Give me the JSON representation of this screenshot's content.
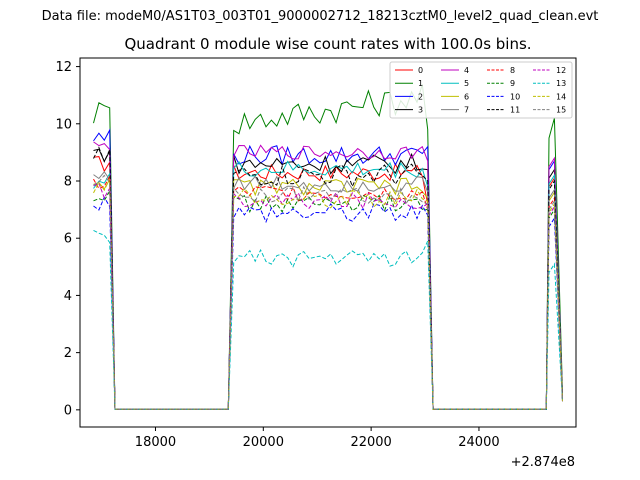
{
  "chart_data": {
    "type": "line",
    "suptitle": "Data file: modeM0/AS1T03_003T01_9000002712_18213cztM0_level2_quad_clean.evt",
    "title": "Quadrant 0 module wise count rates with 100.0s bins.",
    "xlabel": "",
    "ylabel": "",
    "x_offset_label": "+2.874e8",
    "xlim": [
      16600,
      25800
    ],
    "ylim": [
      -0.6,
      12.3
    ],
    "x_ticks": [
      18000,
      20000,
      22000,
      24000
    ],
    "x_tick_labels": [
      "18000",
      "20000",
      "22000",
      "24000"
    ],
    "y_ticks": [
      0,
      2,
      4,
      6,
      8,
      10,
      12
    ],
    "y_tick_labels": [
      "0",
      "2",
      "4",
      "6",
      "8",
      "10",
      "12"
    ],
    "legend_location": "top-right",
    "legend_columns": 4,
    "grid": false,
    "segments": [
      {
        "start": 16850,
        "end": 17250
      },
      {
        "start": 17250,
        "end": 19350
      },
      {
        "start": 19350,
        "end": 23150
      },
      {
        "start": 23150,
        "end": 25250
      },
      {
        "start": 25250,
        "end": 25550
      }
    ],
    "series": [
      {
        "name": "0",
        "color": "#ff0000",
        "dash": "solid",
        "first": 8.6,
        "level": 8.3,
        "amp": 0.3,
        "end": 7.2,
        "last": 0.3
      },
      {
        "name": "1",
        "color": "#008000",
        "dash": "solid",
        "first": 10.4,
        "level": 10.0,
        "amp": 0.5,
        "end": 9.8,
        "last": 0.6
      },
      {
        "name": "2",
        "color": "#0000ff",
        "dash": "solid",
        "first": 9.5,
        "level": 8.9,
        "amp": 0.35,
        "end": 9.2,
        "last": 0.4
      },
      {
        "name": "3",
        "color": "#000000",
        "dash": "solid",
        "first": 9.0,
        "level": 8.6,
        "amp": 0.35,
        "end": 8.4,
        "last": 0.4
      },
      {
        "name": "4",
        "color": "#bf00bf",
        "dash": "solid",
        "first": 9.2,
        "level": 9.0,
        "amp": 0.25,
        "end": 8.7,
        "last": 0.4
      },
      {
        "name": "5",
        "color": "#00bfbf",
        "dash": "solid",
        "first": 8.0,
        "level": 8.4,
        "amp": 0.3,
        "end": 7.8,
        "last": 0.4
      },
      {
        "name": "6",
        "color": "#bfbf00",
        "dash": "solid",
        "first": 8.0,
        "level": 7.8,
        "amp": 0.3,
        "end": 7.4,
        "last": 0.4
      },
      {
        "name": "7",
        "color": "#808080",
        "dash": "solid",
        "first": 8.2,
        "level": 7.9,
        "amp": 0.3,
        "end": 7.6,
        "last": 0.4
      },
      {
        "name": "8",
        "color": "#ff0000",
        "dash": "dashed",
        "first": 7.9,
        "level": 7.6,
        "amp": 0.3,
        "end": 7.0,
        "last": 0.3
      },
      {
        "name": "9",
        "color": "#008000",
        "dash": "dashed",
        "first": 7.6,
        "level": 7.2,
        "amp": 0.3,
        "end": 7.0,
        "last": 0.3
      },
      {
        "name": "10",
        "color": "#0000ff",
        "dash": "dashed",
        "first": 7.3,
        "level": 6.9,
        "amp": 0.35,
        "end": 6.8,
        "last": 0.3
      },
      {
        "name": "11",
        "color": "#000000",
        "dash": "dashed",
        "first": 8.8,
        "level": 8.2,
        "amp": 0.4,
        "end": 8.0,
        "last": 0.4
      },
      {
        "name": "12",
        "color": "#bf00bf",
        "dash": "dashed",
        "first": 7.7,
        "level": 7.3,
        "amp": 0.3,
        "end": 7.2,
        "last": 0.3
      },
      {
        "name": "13",
        "color": "#00bfbf",
        "dash": "dashed",
        "first": 6.0,
        "level": 5.3,
        "amp": 0.3,
        "end": 5.9,
        "last": 0.3
      },
      {
        "name": "14",
        "color": "#bfbf00",
        "dash": "dashed",
        "first": 7.8,
        "level": 7.4,
        "amp": 0.35,
        "end": 7.3,
        "last": 0.3
      },
      {
        "name": "15",
        "color": "#808080",
        "dash": "dashed",
        "first": 7.9,
        "level": 7.5,
        "amp": 0.3,
        "end": 7.2,
        "last": 0.3
      }
    ]
  }
}
